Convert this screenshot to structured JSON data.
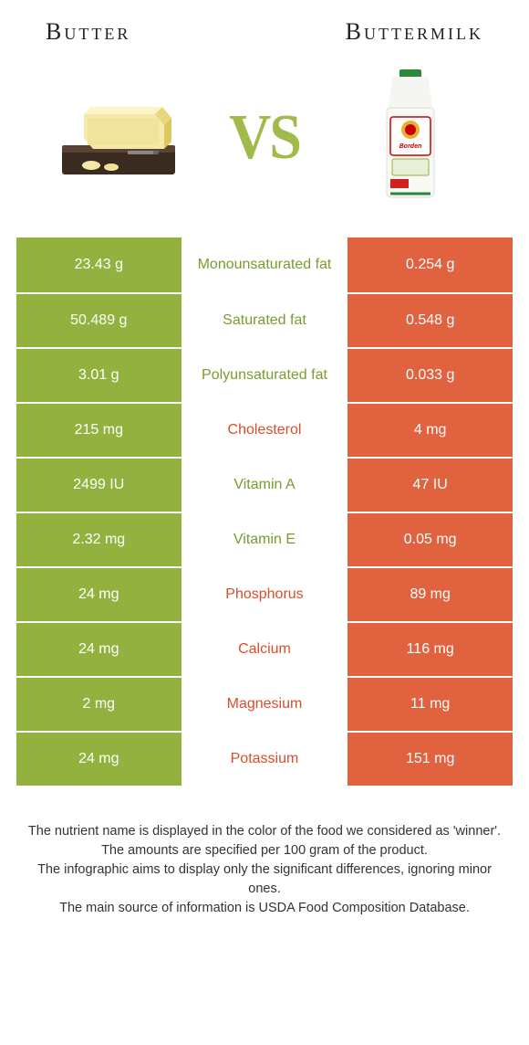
{
  "header": {
    "left": "Butter",
    "right": "Buttermilk"
  },
  "vs_text": "VS",
  "colors": {
    "butter": "#93b13f",
    "buttermilk": "#e1623f",
    "butter_text": "#7a9c2e",
    "buttermilk_text": "#d64f2b"
  },
  "rows": [
    {
      "left": "23.43 g",
      "mid": "Monounsaturated fat",
      "right": "0.254 g",
      "winner": "butter"
    },
    {
      "left": "50.489 g",
      "mid": "Saturated fat",
      "right": "0.548 g",
      "winner": "butter"
    },
    {
      "left": "3.01 g",
      "mid": "Polyunsaturated fat",
      "right": "0.033 g",
      "winner": "butter"
    },
    {
      "left": "215 mg",
      "mid": "Cholesterol",
      "right": "4 mg",
      "winner": "buttermilk"
    },
    {
      "left": "2499 IU",
      "mid": "Vitamin A",
      "right": "47 IU",
      "winner": "butter"
    },
    {
      "left": "2.32 mg",
      "mid": "Vitamin E",
      "right": "0.05 mg",
      "winner": "butter"
    },
    {
      "left": "24 mg",
      "mid": "Phosphorus",
      "right": "89 mg",
      "winner": "buttermilk"
    },
    {
      "left": "24 mg",
      "mid": "Calcium",
      "right": "116 mg",
      "winner": "buttermilk"
    },
    {
      "left": "2 mg",
      "mid": "Magnesium",
      "right": "11 mg",
      "winner": "buttermilk"
    },
    {
      "left": "24 mg",
      "mid": "Potassium",
      "right": "151 mg",
      "winner": "buttermilk"
    }
  ],
  "footer": {
    "l1": "The nutrient name is displayed in the color of the food we considered as 'winner'.",
    "l2": "The amounts are specified per 100 gram of the product.",
    "l3": "The infographic aims to display only the significant differences, ignoring minor ones.",
    "l4": "The main source of information is USDA Food Composition Database."
  }
}
